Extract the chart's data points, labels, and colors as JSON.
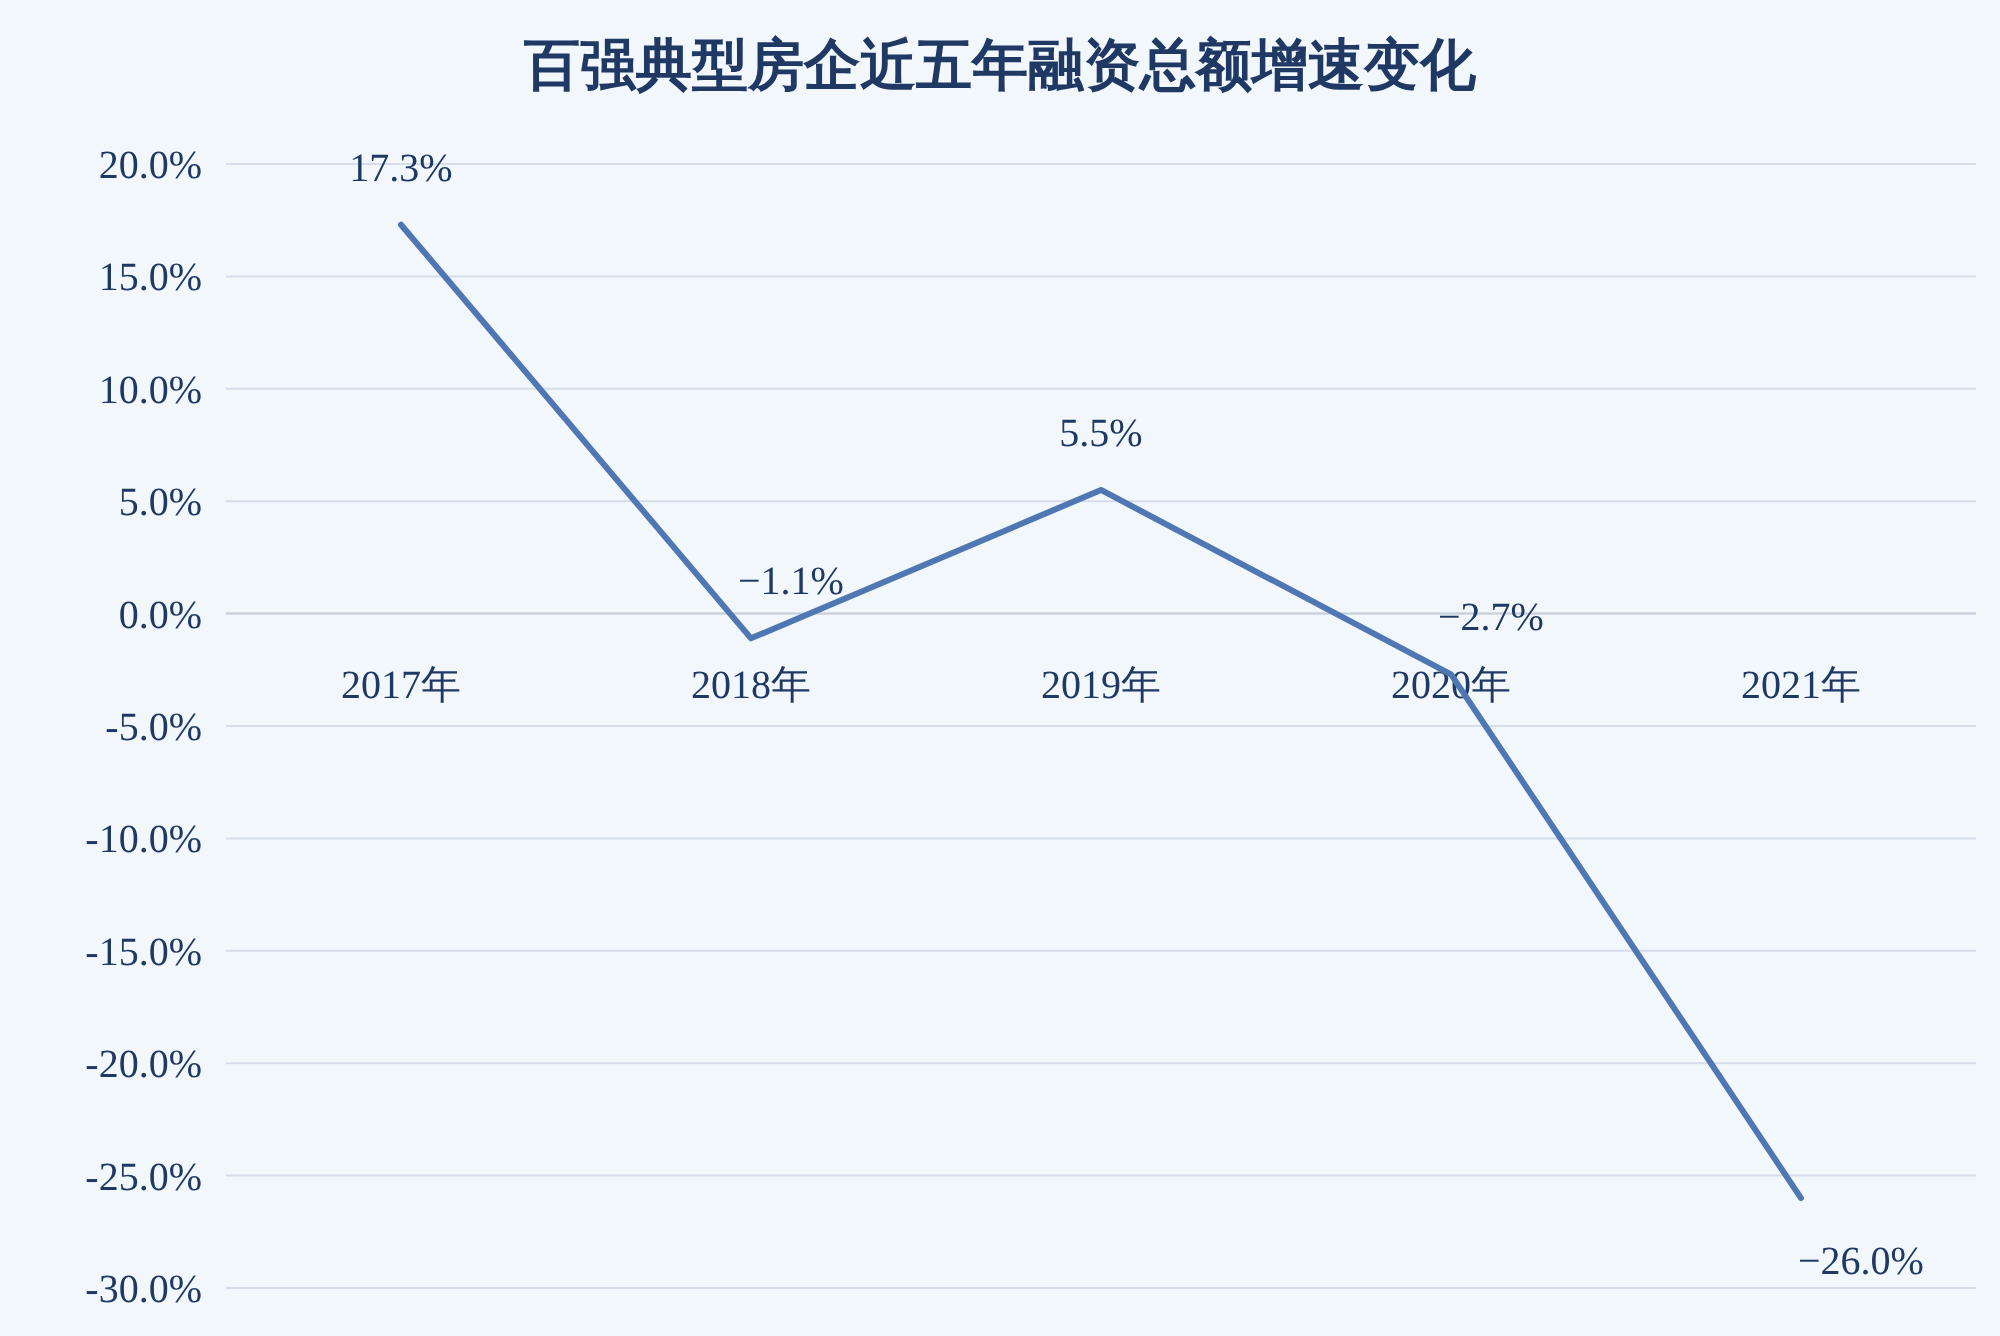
{
  "chart_data": {
    "type": "line",
    "title": "百强典型房企近五年融资总额增速变化",
    "categories": [
      "2017年",
      "2018年",
      "2019年",
      "2020年",
      "2021年"
    ],
    "series": [
      {
        "color": "#4f77b4",
        "values": [
          17.3,
          -1.1,
          5.5,
          -2.7,
          -26.0
        ],
        "value_labels": [
          "17.3%",
          "−1.1%",
          "5.5%",
          "−2.7%",
          "−26.0%"
        ]
      }
    ],
    "ylim": [
      -30,
      20
    ],
    "yticks": [
      {
        "value": 20,
        "label": "20.0%"
      },
      {
        "value": 15,
        "label": "15.0%"
      },
      {
        "value": 10,
        "label": "10.0%"
      },
      {
        "value": 5,
        "label": "5.0%"
      },
      {
        "value": 0,
        "label": "0.0%"
      },
      {
        "value": -5,
        "label": "-5.0%"
      },
      {
        "value": -10,
        "label": "-10.0%"
      },
      {
        "value": -15,
        "label": "-15.0%"
      },
      {
        "value": -20,
        "label": "-20.0%"
      },
      {
        "value": -25,
        "label": "-25.0%"
      },
      {
        "value": -30,
        "label": "-30.0%"
      }
    ],
    "grid": "y",
    "marker": "none",
    "line_style": "solid"
  }
}
